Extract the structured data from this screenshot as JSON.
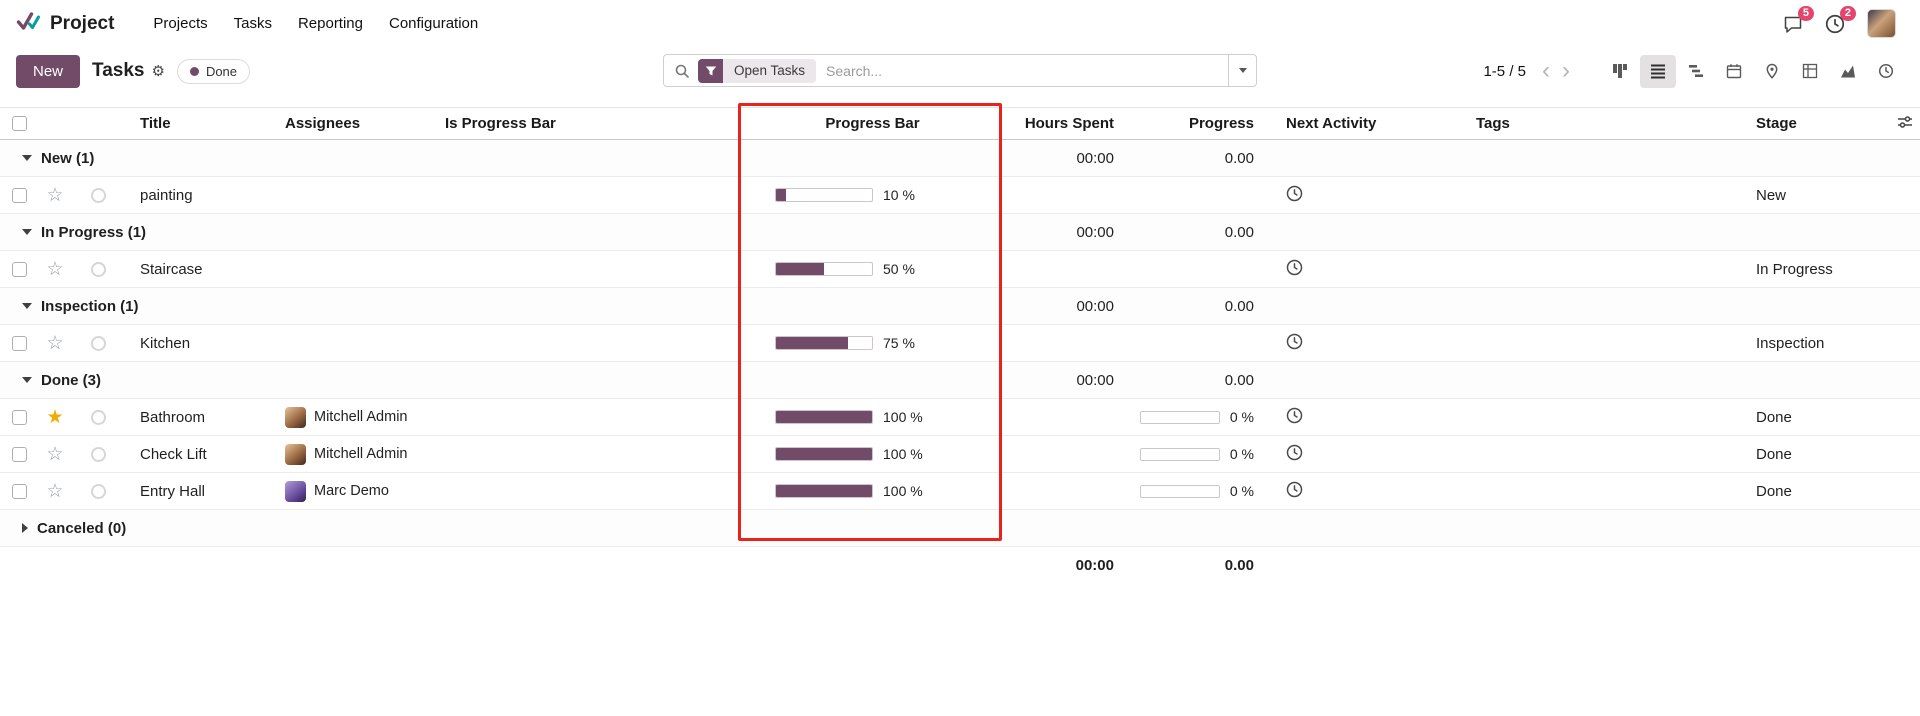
{
  "colors": {
    "accent": "#714B67",
    "progress_fill": "#714B67",
    "highlight_border": "#e8231d",
    "notification_badge": "#e5446d",
    "star_active": "#f0ad00"
  },
  "icons": {
    "app": "double-check",
    "search": "magnifier",
    "facet_filter": "funnel",
    "settings": "gear",
    "messages": "speech-bubble",
    "activities": "clock",
    "next_activity": "clock",
    "favorite": "star",
    "adjust_columns": "sliders"
  },
  "nav": {
    "app_name": "Project",
    "menu_items": [
      "Projects",
      "Tasks",
      "Reporting",
      "Configuration"
    ],
    "messages_badge": "5",
    "activities_badge": "2"
  },
  "control_panel": {
    "new_button": "New",
    "title": "Tasks",
    "project_chip": "Done",
    "search": {
      "facet": "Open Tasks",
      "placeholder": "Search..."
    },
    "pager": "1-5 / 5"
  },
  "view_switcher": {
    "active": "list",
    "views": [
      "kanban",
      "list",
      "gantt",
      "calendar",
      "map",
      "pivot",
      "graph",
      "activity"
    ]
  },
  "table": {
    "columns": {
      "title": "Title",
      "assignees": "Assignees",
      "is_progress_bar": "Is Progress Bar",
      "progress_bar": "Progress Bar",
      "hours_spent": "Hours Spent",
      "progress": "Progress",
      "next_activity": "Next Activity",
      "tags": "Tags",
      "stage": "Stage"
    },
    "groups": [
      {
        "label": "New (1)",
        "hours_total": "00:00",
        "progress_total": "0.00",
        "rows": [
          {
            "title": "painting",
            "assignee": "",
            "bar_pct": 10,
            "bar_label": "10 %",
            "stage": "New",
            "starred": false
          }
        ]
      },
      {
        "label": "In Progress (1)",
        "hours_total": "00:00",
        "progress_total": "0.00",
        "rows": [
          {
            "title": "Staircase",
            "assignee": "",
            "bar_pct": 50,
            "bar_label": "50 %",
            "stage": "In Progress",
            "starred": false
          }
        ]
      },
      {
        "label": "Inspection (1)",
        "hours_total": "00:00",
        "progress_total": "0.00",
        "rows": [
          {
            "title": "Kitchen",
            "assignee": "",
            "bar_pct": 75,
            "bar_label": "75 %",
            "stage": "Inspection",
            "starred": false
          }
        ]
      },
      {
        "label": "Done (3)",
        "hours_total": "00:00",
        "progress_total": "0.00",
        "rows": [
          {
            "title": "Bathroom",
            "assignee": "Mitchell Admin",
            "bar_pct": 100,
            "bar_label": "100 %",
            "progress_pct": 0,
            "progress_label": "0 %",
            "stage": "Done",
            "starred": true
          },
          {
            "title": "Check Lift",
            "assignee": "Mitchell Admin",
            "bar_pct": 100,
            "bar_label": "100 %",
            "progress_pct": 0,
            "progress_label": "0 %",
            "stage": "Done",
            "starred": false
          },
          {
            "title": "Entry Hall",
            "assignee": "Marc Demo",
            "bar_pct": 100,
            "bar_label": "100 %",
            "progress_pct": 0,
            "progress_label": "0 %",
            "stage": "Done",
            "starred": false
          }
        ]
      },
      {
        "label": "Canceled (0)",
        "hours_total": "",
        "progress_total": "",
        "rows": []
      }
    ],
    "totals": {
      "hours": "00:00",
      "progress": "0.00"
    }
  }
}
